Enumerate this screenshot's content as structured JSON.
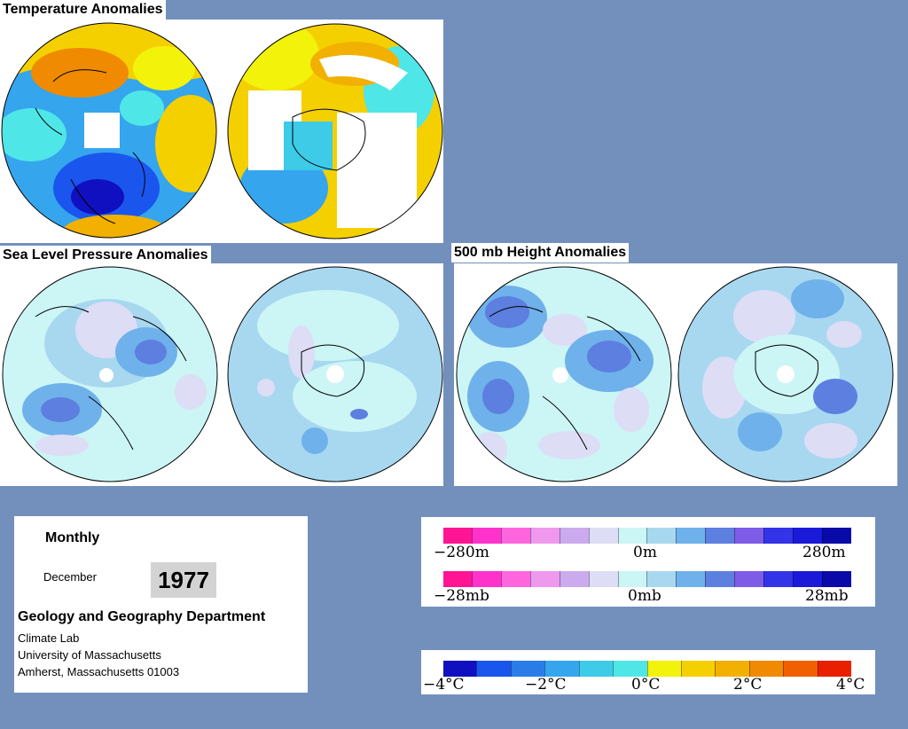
{
  "sections": {
    "temperature_title": "Temperature Anomalies",
    "slp_title": "Sea Level Pressure Anomalies",
    "height_title": "500 mb Height Anomalies"
  },
  "info": {
    "period": "Monthly",
    "month": "December",
    "year": "1977",
    "department": "Geology and Geography Department",
    "lab": "Climate Lab",
    "university": "University of Massachusetts",
    "address": "Amherst, Massachusetts 01003"
  },
  "legends": {
    "height": {
      "min": "−280m",
      "mid": "0m",
      "max": "280m"
    },
    "pressure": {
      "min": "−28mb",
      "mid": "0mb",
      "max": "28mb"
    },
    "temperature": {
      "t1": "−4°C",
      "t2": "−2°C",
      "t3": "0°C",
      "t4": "2°C",
      "t5": "4°C"
    }
  },
  "colors": {
    "background": "#7390bd",
    "anomaly_scale": [
      "#ff1493",
      "#ff33cc",
      "#ff66dd",
      "#ee99ee",
      "#ccaaee",
      "#ddddf5",
      "#ccf5f5",
      "#a8d8f0",
      "#6fb1ea",
      "#5c7fe0",
      "#7f5ce8",
      "#3333e8",
      "#1a1ad8",
      "#0a0aa8"
    ],
    "temperature_scale": [
      "#1010c0",
      "#1a55ee",
      "#2a7de8",
      "#35a5ee",
      "#3dcbe8",
      "#4fe6e8",
      "#f2f20a",
      "#f5d000",
      "#f2b000",
      "#f08a00",
      "#f06000",
      "#e82000"
    ]
  }
}
